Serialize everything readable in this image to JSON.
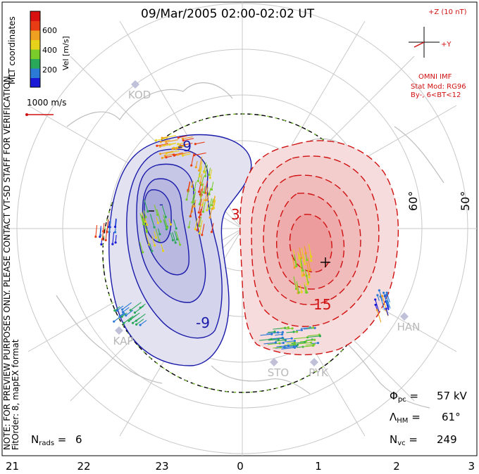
{
  "chart_data": {
    "type": "contour",
    "title": "09/Mar/2005 02:00-02:02 UT",
    "coordinates": "MLT coordinates",
    "notes": [
      "NOTE: FOR PREVIEW PURPOSES ONLY. PLEASE CONTACT VT-SD STAFF FOR VERIFICATION.",
      "FitOrder: 8, mapEX format"
    ],
    "velocity_scale": {
      "label": "Vel [m/s]",
      "ticks": [
        "200",
        "400",
        "600"
      ],
      "colors": [
        "#1a1ad6",
        "#2a7ad6",
        "#2aa85a",
        "#7acc2a",
        "#e6d21a",
        "#f0a020",
        "#e83c14",
        "#d81010"
      ]
    },
    "reference_vector": "1000 m/s",
    "imf": {
      "plus_z": "+Z (10 nT)",
      "plus_y": "+Y",
      "source": "OMNI IMF",
      "model": "Stat Mod: RG96",
      "condition": "By-, 6<BT<12"
    },
    "mlt_ticks": [
      "21",
      "22",
      "23",
      "0",
      "1",
      "2",
      "3"
    ],
    "latitude_labels": [
      "60°",
      "50°"
    ],
    "contour_labels": {
      "negative": [
        "-9",
        "-9",
        "-"
      ],
      "positive": [
        "3",
        "15"
      ]
    },
    "stations": [
      "KOD",
      "KAP",
      "HAN",
      "STO",
      "PYK"
    ],
    "stats": {
      "phi_pc": "57 kV",
      "lambda_hm": "61°",
      "n_vc": "249",
      "n_rads": "6"
    }
  }
}
